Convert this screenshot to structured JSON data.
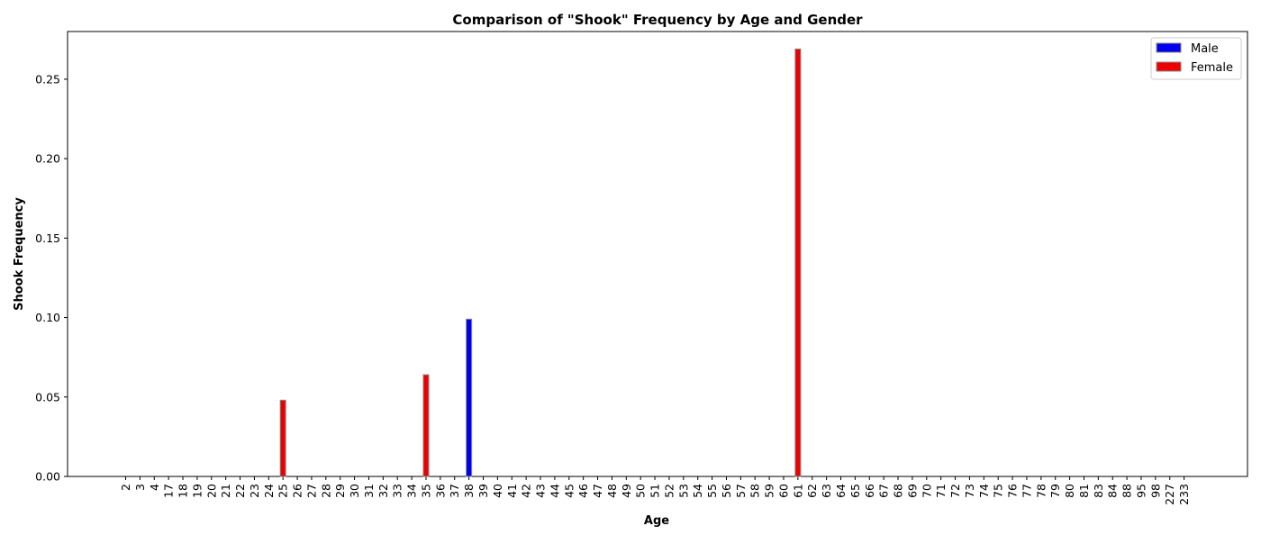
{
  "chart_data": {
    "type": "bar",
    "title": "Comparison of \"Shook\" Frequency by Age and Gender",
    "xlabel": "Age",
    "ylabel": "Shook Frequency",
    "ylim": [
      0,
      0.28
    ],
    "yticks": [
      "0.00",
      "0.05",
      "0.10",
      "0.15",
      "0.20",
      "0.25"
    ],
    "ytick_values": [
      0,
      0.05,
      0.1,
      0.15,
      0.2,
      0.25
    ],
    "grid": false,
    "legend_position": "top-right",
    "categories": [
      "2",
      "3",
      "4",
      "17",
      "18",
      "19",
      "20",
      "21",
      "22",
      "23",
      "24",
      "25",
      "26",
      "27",
      "28",
      "29",
      "30",
      "31",
      "32",
      "33",
      "34",
      "35",
      "36",
      "37",
      "38",
      "39",
      "40",
      "41",
      "42",
      "43",
      "44",
      "45",
      "46",
      "47",
      "48",
      "49",
      "50",
      "51",
      "52",
      "53",
      "54",
      "55",
      "56",
      "57",
      "58",
      "59",
      "60",
      "61",
      "62",
      "63",
      "64",
      "65",
      "66",
      "67",
      "68",
      "69",
      "70",
      "71",
      "72",
      "73",
      "74",
      "75",
      "76",
      "77",
      "78",
      "79",
      "80",
      "81",
      "83",
      "84",
      "88",
      "95",
      "98",
      "227",
      "233"
    ],
    "series": [
      {
        "name": "Male",
        "color": "#0000ee",
        "values": [
          0,
          0,
          0,
          0,
          0,
          0,
          0,
          0,
          0,
          0,
          0,
          0,
          0,
          0,
          0,
          0,
          0,
          0,
          0,
          0,
          0,
          0,
          0,
          0,
          0.099,
          0,
          0,
          0,
          0,
          0,
          0,
          0,
          0,
          0,
          0,
          0,
          0,
          0,
          0,
          0,
          0,
          0,
          0,
          0,
          0,
          0,
          0,
          0,
          0,
          0,
          0,
          0,
          0,
          0,
          0,
          0,
          0,
          0,
          0,
          0,
          0,
          0,
          0,
          0,
          0,
          0,
          0,
          0,
          0,
          0,
          0,
          0,
          0,
          0,
          0
        ]
      },
      {
        "name": "Female",
        "color": "#ee0000",
        "values": [
          0,
          0,
          0,
          0,
          0,
          0,
          0,
          0,
          0,
          0,
          0,
          0.048,
          0,
          0,
          0,
          0,
          0,
          0,
          0,
          0,
          0,
          0.064,
          0,
          0,
          0,
          0,
          0,
          0,
          0,
          0,
          0,
          0,
          0,
          0,
          0,
          0,
          0,
          0,
          0,
          0,
          0,
          0,
          0,
          0,
          0,
          0,
          0,
          0.269,
          0,
          0,
          0,
          0,
          0,
          0,
          0,
          0,
          0,
          0,
          0,
          0,
          0,
          0,
          0,
          0,
          0,
          0,
          0,
          0,
          0,
          0,
          0,
          0,
          0,
          0,
          0
        ]
      }
    ]
  }
}
